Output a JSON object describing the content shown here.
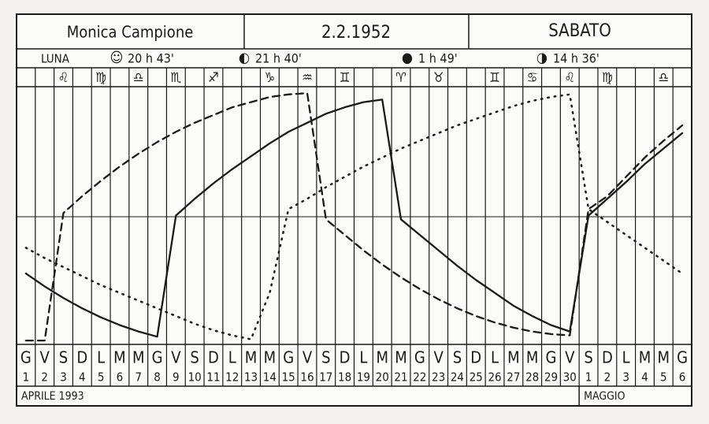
{
  "chart_data": {
    "type": "line",
    "header": {
      "name": "Monica Campione",
      "birthdate": "2.2.1952",
      "weekday": "SABATO"
    },
    "moon_label": "LUNA",
    "moon_phases": [
      {
        "symbol": "☺",
        "time": "20 h 43'"
      },
      {
        "symbol": "◐",
        "time": "21 h 40'"
      },
      {
        "symbol": "●",
        "time": "1 h 49'"
      },
      {
        "symbol": "◑",
        "time": "14 h 36'"
      }
    ],
    "zodiac": [
      null,
      null,
      "♌",
      null,
      "♍",
      null,
      "♎",
      null,
      "♏",
      null,
      "♐",
      null,
      null,
      "♑",
      null,
      "♒",
      null,
      "♊",
      null,
      null,
      "♈",
      null,
      "♉",
      null,
      null,
      "♊",
      null,
      "♋",
      null,
      "♌",
      null,
      "♍",
      null,
      null,
      "♎",
      null
    ],
    "weekdays": [
      "G",
      "V",
      "S",
      "D",
      "L",
      "M",
      "M",
      "G",
      "V",
      "S",
      "D",
      "L",
      "M",
      "M",
      "G",
      "V",
      "S",
      "D",
      "L",
      "M",
      "M",
      "G",
      "V",
      "S",
      "D",
      "L",
      "M",
      "M",
      "G",
      "V",
      "S",
      "D",
      "L",
      "M",
      "M",
      "G"
    ],
    "categories": [
      "1",
      "2",
      "3",
      "4",
      "5",
      "6",
      "7",
      "8",
      "9",
      "10",
      "11",
      "12",
      "13",
      "14",
      "15",
      "16",
      "17",
      "18",
      "19",
      "20",
      "21",
      "22",
      "23",
      "24",
      "25",
      "26",
      "27",
      "28",
      "29",
      "30",
      "1",
      "2",
      "3",
      "4",
      "5",
      "6"
    ],
    "months": [
      "APRILE 1993",
      "MAGGIO"
    ],
    "ylim": [
      -1,
      1
    ],
    "series": [
      {
        "style": "solid",
        "color": "#1a1a1a",
        "values": [
          -0.45,
          -0.55,
          -0.64,
          -0.72,
          -0.79,
          -0.85,
          -0.9,
          -0.94,
          0.0,
          0.13,
          0.25,
          0.36,
          0.46,
          0.56,
          0.65,
          0.72,
          0.79,
          0.84,
          0.88,
          0.9,
          -0.03,
          -0.15,
          -0.27,
          -0.39,
          -0.5,
          -0.6,
          -0.7,
          -0.78,
          -0.85,
          -0.9,
          0.0,
          0.13,
          0.26,
          0.4,
          0.52,
          0.64
        ]
      },
      {
        "style": "dashed",
        "color": "#1a1a1a",
        "values": [
          -0.97,
          -0.97,
          0.02,
          0.15,
          0.27,
          0.38,
          0.48,
          0.57,
          0.65,
          0.72,
          0.78,
          0.84,
          0.88,
          0.92,
          0.94,
          0.95,
          -0.03,
          -0.15,
          -0.27,
          -0.38,
          -0.48,
          -0.57,
          -0.65,
          -0.72,
          -0.78,
          -0.83,
          -0.87,
          -0.9,
          -0.92,
          -0.93,
          0.05,
          0.15,
          0.3,
          0.45,
          0.58,
          0.7
        ]
      },
      {
        "style": "dotted",
        "color": "#1a1a1a",
        "values": [
          -0.25,
          -0.33,
          -0.4,
          -0.47,
          -0.54,
          -0.6,
          -0.66,
          -0.72,
          -0.78,
          -0.84,
          -0.89,
          -0.93,
          -0.96,
          -0.6,
          0.05,
          0.13,
          0.22,
          0.3,
          0.38,
          0.45,
          0.52,
          0.58,
          0.64,
          0.7,
          0.75,
          0.8,
          0.85,
          0.89,
          0.92,
          0.94,
          0.05,
          -0.05,
          -0.15,
          -0.25,
          -0.35,
          -0.45
        ]
      }
    ]
  }
}
